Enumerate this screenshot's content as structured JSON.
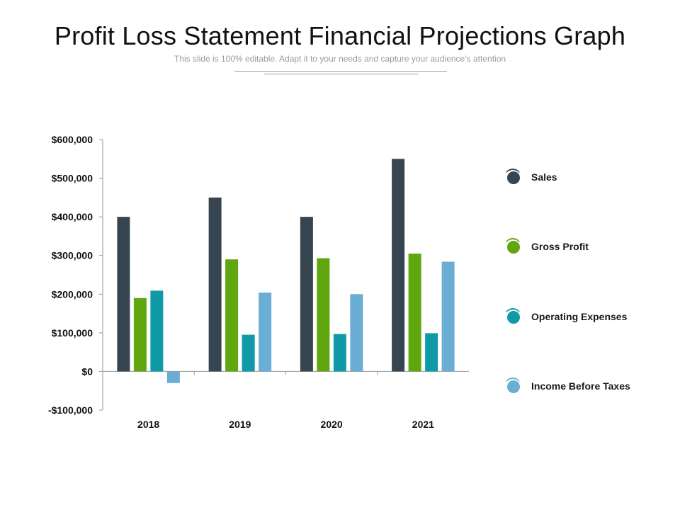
{
  "header": {
    "title": "Profit Loss Statement Financial Projections Graph",
    "subtitle": "This slide is 100% editable. Adapt it to your needs and capture your audience’s attention"
  },
  "colors": {
    "sales": "#36454f",
    "gross_profit": "#5fa60f",
    "operating_expenses": "#0e9aa7",
    "income_before_taxes": "#6aaed3",
    "axis": "#999999"
  },
  "chart_data": {
    "type": "bar",
    "title": "Profit Loss Statement Financial Projections Graph",
    "xlabel": "",
    "ylabel": "",
    "categories": [
      "2018",
      "2019",
      "2020",
      "2021"
    ],
    "ylim": [
      -100000,
      600000
    ],
    "yticks": [
      600000,
      500000,
      400000,
      300000,
      200000,
      100000,
      0,
      -100000
    ],
    "ytick_labels": [
      "$600,000",
      "$500,000",
      "$400,000",
      "$300,000",
      "$200,000",
      "$100,000",
      "$0",
      "-$100,000"
    ],
    "legend_position": "right",
    "series": [
      {
        "name": "Sales",
        "color_key": "sales",
        "values": [
          400000,
          450000,
          400000,
          550000
        ]
      },
      {
        "name": "Gross Profit",
        "color_key": "gross_profit",
        "values": [
          190000,
          290000,
          293000,
          305000
        ]
      },
      {
        "name": "Operating  Expenses",
        "color_key": "operating_expenses",
        "values": [
          209000,
          95000,
          97000,
          99000
        ]
      },
      {
        "name": "Income Before Taxes",
        "color_key": "income_before_taxes",
        "values": [
          -30000,
          204000,
          200000,
          284000
        ]
      }
    ]
  }
}
